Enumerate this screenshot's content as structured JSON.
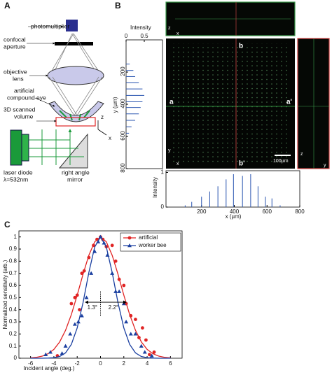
{
  "panel_labels": [
    "A",
    "B",
    "C"
  ],
  "diagram": {
    "labels": [
      [
        "photomultiplier"
      ],
      [
        "confocal",
        "aperture"
      ],
      [
        "objective",
        "lens"
      ],
      [
        "artificial",
        "compound eye"
      ],
      [
        "3D scanned",
        "volume"
      ],
      [
        "laser diode",
        "λ=532nm"
      ],
      [
        "right angle",
        "mirror"
      ]
    ],
    "axes": [
      "z",
      "x"
    ]
  },
  "image": {
    "labels": [
      "a",
      "a'",
      "b",
      "b'"
    ],
    "scale_bar": "100µm",
    "main_axes": [
      "y",
      "x"
    ],
    "top_axes": [
      "z",
      "x"
    ],
    "right_axes": [
      "z",
      "y"
    ]
  },
  "chart_data": [
    {
      "type": "stem",
      "orientation": "horizontal",
      "title": "Intensity",
      "ylabel": "y (µm)",
      "x": [
        150,
        190,
        228,
        265,
        305,
        345,
        385,
        420,
        460,
        500,
        540,
        580
      ],
      "values": [
        0.1,
        0.2,
        0.25,
        0.35,
        0.45,
        0.5,
        0.45,
        0.4,
        0.35,
        0.25,
        0.15,
        0.08
      ],
      "color": "#2a55b0",
      "xlim": [
        0,
        800
      ],
      "xticks": [
        200,
        400,
        600,
        800
      ],
      "ylim": [
        0,
        1
      ],
      "yticks": [
        0,
        0.5
      ]
    },
    {
      "type": "stem",
      "orientation": "vertical",
      "xlabel": "x (µm)",
      "ylabel": "Intensity",
      "x": [
        100,
        140,
        200,
        250,
        300,
        350,
        395,
        450,
        500,
        545,
        590,
        630,
        680
      ],
      "values": [
        0.05,
        0.15,
        0.3,
        0.45,
        0.6,
        0.8,
        0.95,
        0.9,
        0.95,
        0.6,
        0.3,
        0.25,
        0.05
      ],
      "color": "#2a55b0",
      "xlim": [
        0,
        800
      ],
      "xticks": [
        200,
        400,
        600,
        800
      ],
      "ylim": [
        0,
        1.05
      ],
      "yticks": [
        0,
        1
      ]
    },
    {
      "type": "scatter",
      "xlabel": "Incident angle (deg.)",
      "ylabel": "Normalized sensitivity (arb.)",
      "xlim": [
        -7,
        7
      ],
      "xticks": [
        -6,
        -4,
        -2,
        0,
        2,
        4,
        6
      ],
      "ylim": [
        0,
        1.05
      ],
      "yticks": [
        0,
        0.1,
        0.2,
        0.3,
        0.4,
        0.5,
        0.6,
        0.7,
        0.8,
        0.9,
        1
      ],
      "legend": "top-right",
      "annotations": [
        "1.3°",
        "2.2°"
      ],
      "series": [
        {
          "name": "artificial",
          "color": "#e02424",
          "marker": "circle",
          "x": [
            -3.7,
            -2.5,
            -2.2,
            -2,
            -1.8,
            -1.6,
            -1.4,
            -1,
            -0.6,
            -0.3,
            0,
            0.2,
            0.5,
            1,
            1.3,
            1.6,
            2,
            2.2,
            2.6,
            3,
            3.3,
            3.6,
            3.9,
            4.2,
            4.6
          ],
          "values": [
            0.02,
            0.45,
            0.5,
            0.52,
            0.4,
            0.7,
            0.72,
            0.83,
            0.93,
            0.98,
            1,
            0.98,
            0.92,
            0.93,
            0.8,
            0.65,
            0.6,
            0.45,
            0.35,
            0.32,
            0.17,
            0.25,
            0.15,
            0.03,
            0.05
          ],
          "fit": {
            "x": [
              -6,
              -5.5,
              -5,
              -4.5,
              -4,
              -3.5,
              -3,
              -2.5,
              -2,
              -1.5,
              -1,
              -0.5,
              0,
              0.5,
              1,
              1.5,
              2,
              2.5,
              3,
              3.5,
              4,
              4.5,
              5,
              5.5,
              6
            ],
            "values": [
              0.003,
              0.007,
              0.017,
              0.037,
              0.073,
              0.135,
              0.23,
              0.36,
              0.52,
              0.692,
              0.849,
              0.96,
              1,
              0.96,
              0.849,
              0.692,
              0.52,
              0.36,
              0.23,
              0.135,
              0.073,
              0.037,
              0.017,
              0.007,
              0.003
            ]
          }
        },
        {
          "name": "worker bee",
          "color": "#1a3fa0",
          "marker": "triangle",
          "x": [
            -4.7,
            -4.3,
            -3.3,
            -3,
            -2.6,
            -2.2,
            -1.9,
            -1.6,
            -1.2,
            -0.8,
            -0.5,
            -0.2,
            0,
            0.3,
            0.6,
            1,
            1.3,
            1.6,
            2,
            2.2,
            2.6,
            3,
            3.5,
            3.8,
            4.4
          ],
          "values": [
            0.03,
            0.05,
            0.04,
            0.1,
            0.2,
            0.28,
            0.3,
            0.35,
            0.5,
            0.7,
            0.88,
            0.96,
            1,
            0.95,
            0.85,
            0.7,
            0.55,
            0.55,
            0.45,
            0.3,
            0.2,
            0.2,
            0.1,
            0.05,
            0.02
          ],
          "fit": {
            "x": [
              -6,
              -5.5,
              -5,
              -4.5,
              -4,
              -3.5,
              -3,
              -2.5,
              -2,
              -1.5,
              -1,
              -0.5,
              0,
              0.5,
              1,
              1.5,
              2,
              2.5,
              3,
              3.5,
              4,
              4.5,
              5,
              5.5,
              6
            ],
            "values": [
              0,
              0,
              0,
              0.001,
              0.004,
              0.014,
              0.044,
              0.114,
              0.25,
              0.458,
              0.707,
              0.917,
              1,
              0.917,
              0.707,
              0.458,
              0.25,
              0.114,
              0.044,
              0.014,
              0.004,
              0.001,
              0,
              0,
              0
            ]
          }
        }
      ]
    }
  ]
}
